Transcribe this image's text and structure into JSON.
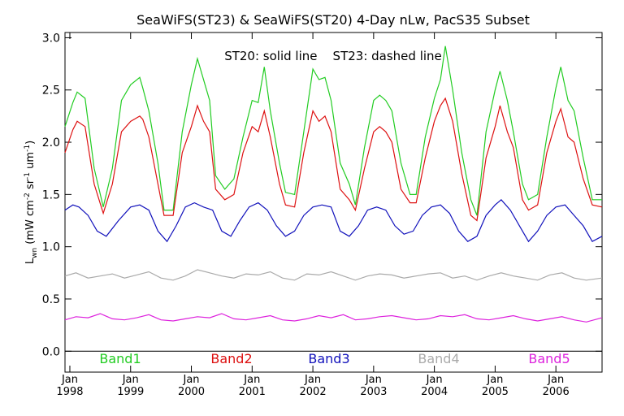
{
  "chart_data": {
    "type": "line",
    "title": "SeaWiFS(ST23) & SeaWiFS(ST20) 4-Day nLw, PacS35 Subset",
    "annotation": "ST20: solid line    ST23: dashed line",
    "ylabel_main": "L",
    "ylabel_sub": "wn",
    "ylabel_units": " (mW cm",
    "ylabel_units_sup1": "-2",
    "ylabel_units_mid": " sr",
    "ylabel_units_sup2": "-1",
    "ylabel_units_tail": " um",
    "ylabel_units_sup3": "-1",
    "ylabel_close": ")",
    "ylim": [
      -0.2,
      3.05
    ],
    "xlim": [
      1997.92,
      2006.76
    ],
    "y_ticks": [
      "0.0",
      "0.5",
      "1.0",
      "1.5",
      "2.0",
      "2.5",
      "3.0"
    ],
    "y_tick_values": [
      0.0,
      0.5,
      1.0,
      1.5,
      2.0,
      2.5,
      3.0
    ],
    "x_ticks": [
      {
        "value": 1998,
        "label1": "Jan",
        "label2": "1998"
      },
      {
        "value": 1999,
        "label1": "Jan",
        "label2": "1999"
      },
      {
        "value": 2000,
        "label1": "Jan",
        "label2": "2000"
      },
      {
        "value": 2001,
        "label1": "Jan",
        "label2": "2001"
      },
      {
        "value": 2002,
        "label1": "Jan",
        "label2": "2002"
      },
      {
        "value": 2003,
        "label1": "Jan",
        "label2": "2003"
      },
      {
        "value": 2004,
        "label1": "Jan",
        "label2": "2004"
      },
      {
        "value": 2005,
        "label1": "Jan",
        "label2": "2005"
      },
      {
        "value": 2006,
        "label1": "Jan",
        "label2": "2006"
      }
    ],
    "grid": false,
    "series": [
      {
        "name": "Band1",
        "color": "#22cc22",
        "x": [
          1997.92,
          1998.05,
          1998.12,
          1998.25,
          1998.4,
          1998.55,
          1998.7,
          1998.85,
          1999.0,
          1999.15,
          1999.2,
          1999.3,
          1999.45,
          1999.55,
          1999.7,
          1999.85,
          2000.0,
          2000.1,
          2000.2,
          2000.3,
          2000.4,
          2000.55,
          2000.7,
          2000.85,
          2001.0,
          2001.1,
          2001.2,
          2001.3,
          2001.45,
          2001.55,
          2001.7,
          2001.85,
          2002.0,
          2002.1,
          2002.2,
          2002.3,
          2002.45,
          2002.6,
          2002.7,
          2002.85,
          2003.0,
          2003.1,
          2003.2,
          2003.3,
          2003.45,
          2003.6,
          2003.7,
          2003.85,
          2004.0,
          2004.1,
          2004.18,
          2004.3,
          2004.45,
          2004.6,
          2004.7,
          2004.85,
          2005.0,
          2005.08,
          2005.2,
          2005.3,
          2005.45,
          2005.55,
          2005.7,
          2005.85,
          2006.0,
          2006.08,
          2006.2,
          2006.3,
          2006.45,
          2006.6,
          2006.76
        ],
        "y": [
          2.15,
          2.38,
          2.48,
          2.42,
          1.75,
          1.38,
          1.75,
          2.4,
          2.55,
          2.62,
          2.52,
          2.3,
          1.8,
          1.35,
          1.35,
          2.1,
          2.55,
          2.8,
          2.6,
          2.4,
          1.68,
          1.55,
          1.65,
          2.05,
          2.4,
          2.38,
          2.72,
          2.3,
          1.8,
          1.52,
          1.5,
          2.1,
          2.7,
          2.6,
          2.62,
          2.4,
          1.8,
          1.6,
          1.4,
          1.95,
          2.4,
          2.45,
          2.4,
          2.3,
          1.8,
          1.5,
          1.5,
          2.05,
          2.42,
          2.6,
          2.92,
          2.5,
          1.9,
          1.45,
          1.3,
          2.1,
          2.5,
          2.68,
          2.4,
          2.1,
          1.6,
          1.45,
          1.5,
          2.05,
          2.52,
          2.72,
          2.4,
          2.3,
          1.85,
          1.45,
          1.45
        ]
      },
      {
        "name": "Band2",
        "color": "#dd1111",
        "x": [
          1997.92,
          1998.05,
          1998.12,
          1998.25,
          1998.4,
          1998.55,
          1998.7,
          1998.85,
          1999.0,
          1999.15,
          1999.2,
          1999.3,
          1999.45,
          1999.55,
          1999.7,
          1999.85,
          2000.0,
          2000.1,
          2000.2,
          2000.3,
          2000.4,
          2000.55,
          2000.7,
          2000.85,
          2001.0,
          2001.1,
          2001.2,
          2001.3,
          2001.45,
          2001.55,
          2001.7,
          2001.85,
          2002.0,
          2002.1,
          2002.2,
          2002.3,
          2002.45,
          2002.6,
          2002.7,
          2002.85,
          2003.0,
          2003.1,
          2003.2,
          2003.3,
          2003.45,
          2003.6,
          2003.7,
          2003.85,
          2004.0,
          2004.1,
          2004.18,
          2004.3,
          2004.45,
          2004.6,
          2004.7,
          2004.85,
          2005.0,
          2005.08,
          2005.2,
          2005.3,
          2005.45,
          2005.55,
          2005.7,
          2005.85,
          2006.0,
          2006.08,
          2006.2,
          2006.3,
          2006.45,
          2006.6,
          2006.76
        ],
        "y": [
          1.9,
          2.12,
          2.2,
          2.15,
          1.6,
          1.32,
          1.6,
          2.1,
          2.2,
          2.25,
          2.22,
          2.05,
          1.6,
          1.3,
          1.3,
          1.9,
          2.15,
          2.35,
          2.2,
          2.1,
          1.55,
          1.45,
          1.5,
          1.9,
          2.15,
          2.1,
          2.3,
          2.05,
          1.6,
          1.4,
          1.38,
          1.9,
          2.3,
          2.2,
          2.25,
          2.1,
          1.55,
          1.45,
          1.35,
          1.75,
          2.1,
          2.15,
          2.1,
          2.0,
          1.55,
          1.42,
          1.42,
          1.85,
          2.2,
          2.35,
          2.42,
          2.2,
          1.7,
          1.3,
          1.25,
          1.85,
          2.15,
          2.35,
          2.1,
          1.95,
          1.45,
          1.35,
          1.4,
          1.9,
          2.2,
          2.32,
          2.05,
          2.0,
          1.65,
          1.4,
          1.38
        ]
      },
      {
        "name": "Band3",
        "color": "#1111bb",
        "x": [
          1997.92,
          1998.05,
          1998.15,
          1998.3,
          1998.45,
          1998.6,
          1998.8,
          1999.0,
          1999.15,
          1999.3,
          1999.45,
          1999.6,
          1999.75,
          1999.9,
          2000.05,
          2000.2,
          2000.35,
          2000.5,
          2000.65,
          2000.8,
          2000.95,
          2001.1,
          2001.25,
          2001.4,
          2001.55,
          2001.7,
          2001.85,
          2002.0,
          2002.15,
          2002.3,
          2002.45,
          2002.6,
          2002.75,
          2002.9,
          2003.05,
          2003.2,
          2003.35,
          2003.5,
          2003.65,
          2003.8,
          2003.95,
          2004.1,
          2004.25,
          2004.4,
          2004.55,
          2004.7,
          2004.85,
          2005.0,
          2005.1,
          2005.25,
          2005.4,
          2005.55,
          2005.7,
          2005.85,
          2006.0,
          2006.15,
          2006.3,
          2006.45,
          2006.6,
          2006.76
        ],
        "y": [
          1.35,
          1.4,
          1.38,
          1.3,
          1.15,
          1.1,
          1.25,
          1.38,
          1.4,
          1.35,
          1.15,
          1.05,
          1.2,
          1.38,
          1.42,
          1.38,
          1.35,
          1.15,
          1.1,
          1.25,
          1.38,
          1.42,
          1.35,
          1.2,
          1.1,
          1.15,
          1.3,
          1.38,
          1.4,
          1.38,
          1.15,
          1.1,
          1.2,
          1.35,
          1.38,
          1.35,
          1.2,
          1.12,
          1.15,
          1.3,
          1.38,
          1.4,
          1.32,
          1.15,
          1.05,
          1.1,
          1.3,
          1.4,
          1.45,
          1.35,
          1.2,
          1.05,
          1.15,
          1.3,
          1.38,
          1.4,
          1.3,
          1.2,
          1.05,
          1.1
        ]
      },
      {
        "name": "Band4",
        "color": "#aaaaaa",
        "x": [
          1997.92,
          1998.1,
          1998.3,
          1998.5,
          1998.7,
          1998.9,
          1999.1,
          1999.3,
          1999.5,
          1999.7,
          1999.9,
          2000.1,
          2000.3,
          2000.5,
          2000.7,
          2000.9,
          2001.1,
          2001.3,
          2001.5,
          2001.7,
          2001.9,
          2002.1,
          2002.3,
          2002.5,
          2002.7,
          2002.9,
          2003.1,
          2003.3,
          2003.5,
          2003.7,
          2003.9,
          2004.1,
          2004.3,
          2004.5,
          2004.7,
          2004.9,
          2005.1,
          2005.3,
          2005.5,
          2005.7,
          2005.9,
          2006.1,
          2006.3,
          2006.5,
          2006.76
        ],
        "y": [
          0.72,
          0.75,
          0.7,
          0.72,
          0.74,
          0.7,
          0.73,
          0.76,
          0.7,
          0.68,
          0.72,
          0.78,
          0.75,
          0.72,
          0.7,
          0.74,
          0.73,
          0.76,
          0.7,
          0.68,
          0.74,
          0.73,
          0.76,
          0.72,
          0.68,
          0.72,
          0.74,
          0.73,
          0.7,
          0.72,
          0.74,
          0.75,
          0.7,
          0.72,
          0.68,
          0.72,
          0.75,
          0.72,
          0.7,
          0.68,
          0.73,
          0.75,
          0.7,
          0.68,
          0.7
        ]
      },
      {
        "name": "Band5",
        "color": "#dd22dd",
        "x": [
          1997.92,
          1998.1,
          1998.3,
          1998.5,
          1998.7,
          1998.9,
          1999.1,
          1999.3,
          1999.5,
          1999.7,
          1999.9,
          2000.1,
          2000.3,
          2000.5,
          2000.7,
          2000.9,
          2001.1,
          2001.3,
          2001.5,
          2001.7,
          2001.9,
          2002.1,
          2002.3,
          2002.5,
          2002.7,
          2002.9,
          2003.1,
          2003.3,
          2003.5,
          2003.7,
          2003.9,
          2004.1,
          2004.3,
          2004.5,
          2004.7,
          2004.9,
          2005.1,
          2005.3,
          2005.5,
          2005.7,
          2005.9,
          2006.1,
          2006.3,
          2006.5,
          2006.76
        ],
        "y": [
          0.3,
          0.33,
          0.32,
          0.36,
          0.31,
          0.3,
          0.32,
          0.35,
          0.3,
          0.29,
          0.31,
          0.33,
          0.32,
          0.36,
          0.31,
          0.3,
          0.32,
          0.34,
          0.3,
          0.29,
          0.31,
          0.34,
          0.32,
          0.35,
          0.3,
          0.31,
          0.33,
          0.34,
          0.32,
          0.3,
          0.31,
          0.34,
          0.33,
          0.35,
          0.31,
          0.3,
          0.32,
          0.34,
          0.31,
          0.29,
          0.31,
          0.33,
          0.3,
          0.28,
          0.32
        ]
      }
    ]
  }
}
